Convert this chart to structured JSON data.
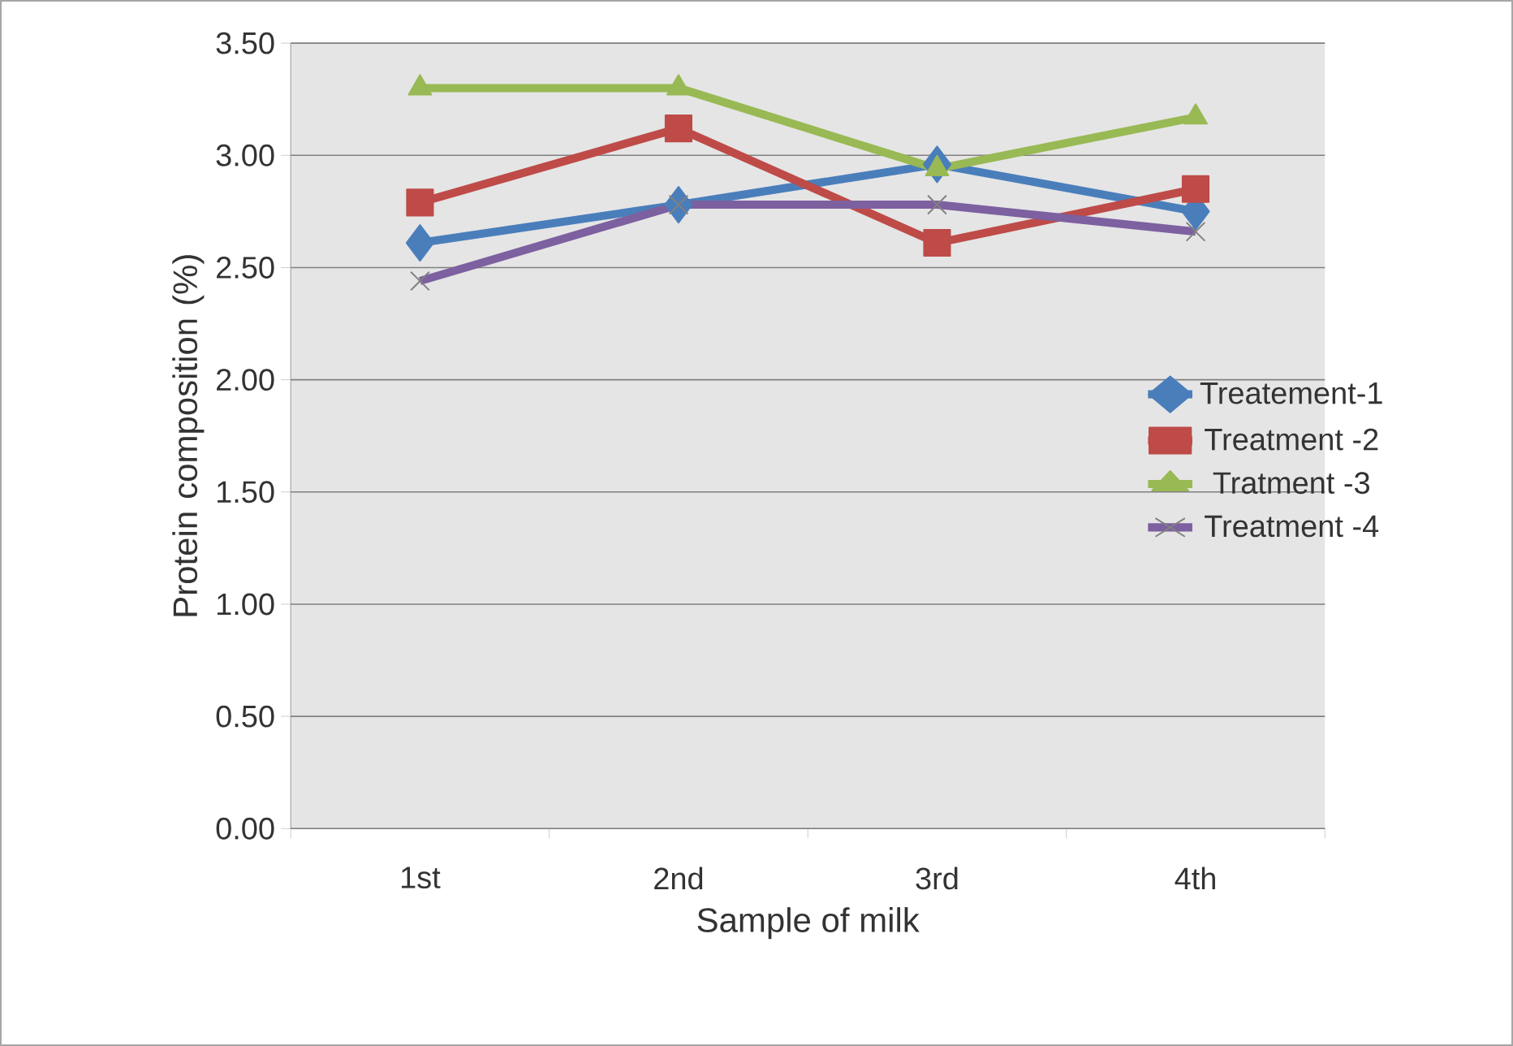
{
  "chart_data": {
    "type": "line",
    "xlabel": "Sample of milk",
    "ylabel": "Protein composition (%)",
    "categories": [
      "1st",
      "2nd",
      "3rd",
      "4th"
    ],
    "series": [
      {
        "name": "Treatement-1",
        "color": "#4a7ebb",
        "marker": "diamond",
        "values": [
          2.61,
          2.78,
          2.96,
          2.75
        ]
      },
      {
        "name": "Treatment -2",
        "color": "#be4b48",
        "marker": "square",
        "values": [
          2.79,
          3.12,
          2.61,
          2.85
        ]
      },
      {
        "name": "Tratment  -3",
        "color": "#98b954",
        "marker": "triangle",
        "values": [
          3.3,
          3.3,
          2.94,
          3.17
        ]
      },
      {
        "name": "Treatment -4",
        "color": "#7d60a0",
        "marker": "cross",
        "values": [
          2.44,
          2.78,
          2.78,
          2.66
        ]
      }
    ],
    "ylim": [
      0,
      3.5
    ],
    "yticks": [
      {
        "value": 0,
        "label": "0.00"
      },
      {
        "value": 0.5,
        "label": "0.50"
      },
      {
        "value": 1,
        "label": "1.00"
      },
      {
        "value": 1.5,
        "label": "1.50"
      },
      {
        "value": 2,
        "label": "2.00"
      },
      {
        "value": 2.5,
        "label": "2.50"
      },
      {
        "value": 3,
        "label": "3.00"
      },
      {
        "value": 3.5,
        "label": "3.50"
      }
    ],
    "grid": "y",
    "legend": "right",
    "line_style": "solid"
  }
}
